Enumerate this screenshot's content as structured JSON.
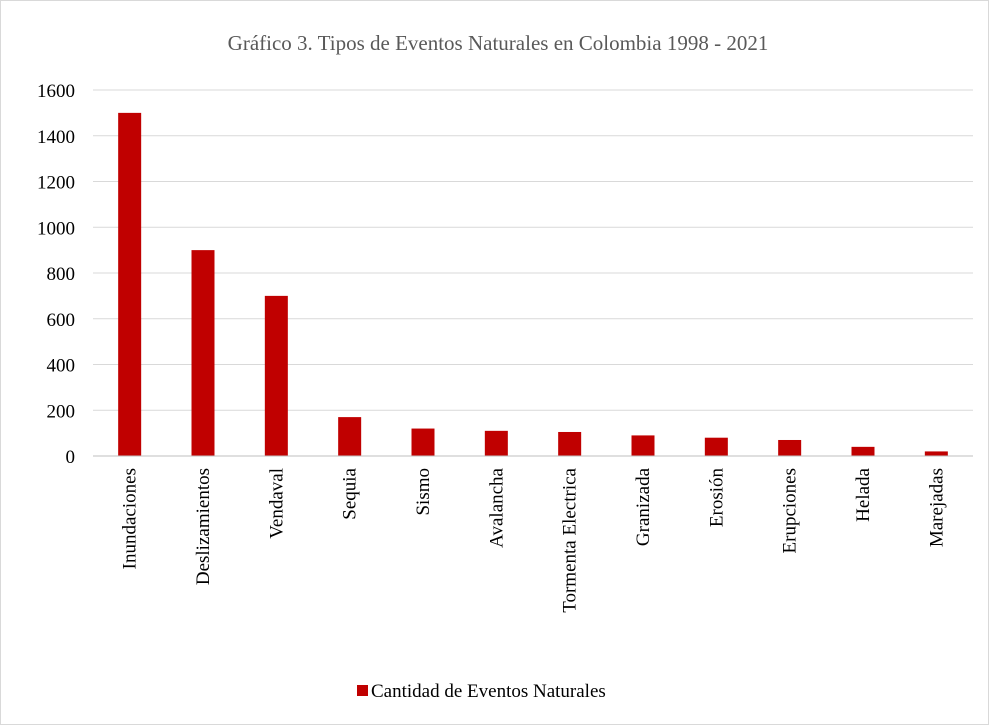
{
  "chart_data": {
    "type": "bar",
    "title": "Gráfico 3. Tipos de Eventos Naturales en Colombia 1998 - 2021",
    "xlabel": "",
    "ylabel": "",
    "ylim": [
      0,
      1600
    ],
    "yticks": [
      0,
      200,
      400,
      600,
      800,
      1000,
      1200,
      1400,
      1600
    ],
    "grid": true,
    "legend_position": "bottom",
    "categories": [
      "Inundaciones",
      "Deslizamientos",
      "Vendaval",
      "Sequia",
      "Sismo",
      "Avalancha",
      "Tormenta Electrica",
      "Granizada",
      "Erosión",
      "Erupciones",
      "Helada",
      "Marejadas"
    ],
    "series": [
      {
        "name": "Cantidad de Eventos Naturales",
        "color": "#c00000",
        "values": [
          1500,
          900,
          700,
          170,
          120,
          110,
          105,
          90,
          80,
          70,
          40,
          20
        ]
      }
    ],
    "colors": {
      "grid": "#d9d9d9",
      "axis": "#bfbfbf",
      "text": "#000000",
      "title": "#595959"
    }
  }
}
